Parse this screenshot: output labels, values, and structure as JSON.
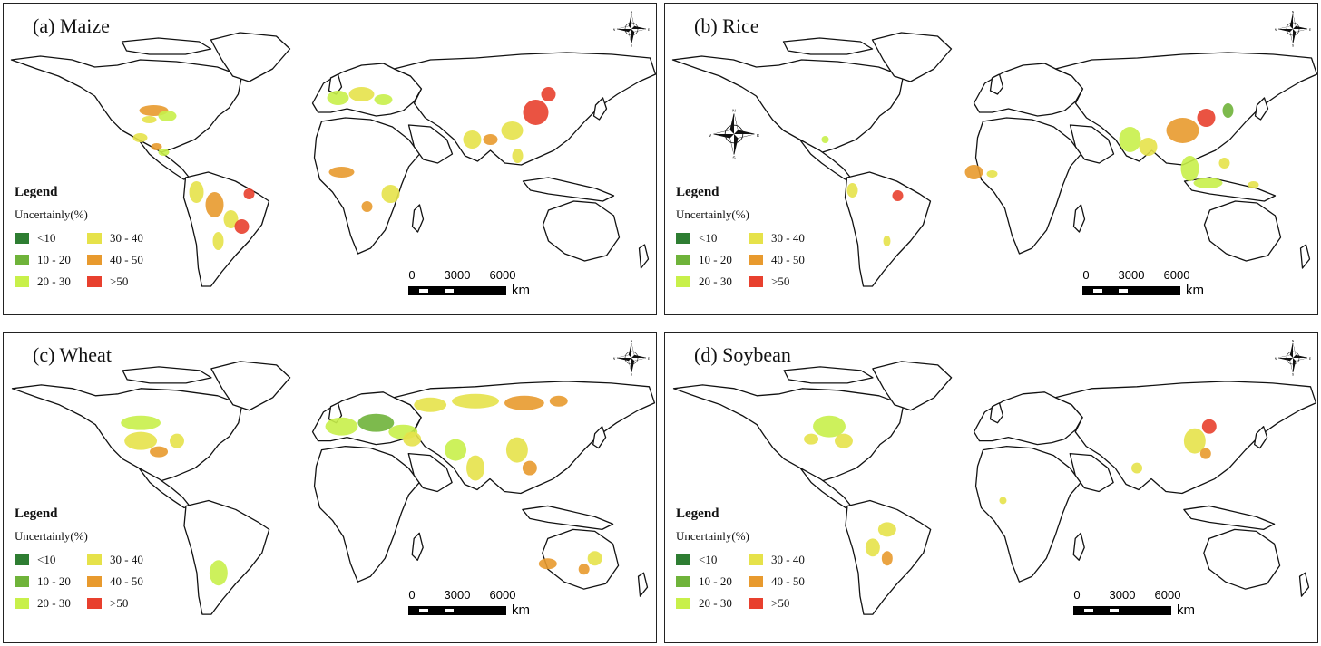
{
  "panels": [
    {
      "title": "(a)  Maize"
    },
    {
      "title": "(b) Rice"
    },
    {
      "title": "(c) Wheat"
    },
    {
      "title": "(d) Soybean"
    }
  ],
  "legend": {
    "title": "Legend",
    "subtitle": "Uncertainly(%)",
    "classes": [
      {
        "label": "<10",
        "color": "#2e7d32"
      },
      {
        "label": "30 - 40",
        "color": "#e6e24a"
      },
      {
        "label": "10 - 20",
        "color": "#6fb33a"
      },
      {
        "label": "40 - 50",
        "color": "#e89a2e"
      },
      {
        "label": "20 - 30",
        "color": "#c8f04a"
      },
      {
        "label": ">50",
        "color": "#e8402e"
      }
    ]
  },
  "scalebar": {
    "ticks": [
      "0",
      "3000",
      "6000"
    ],
    "unit": "km"
  },
  "compass": {
    "n": "N",
    "s": "S",
    "e": "E",
    "w": "W"
  }
}
